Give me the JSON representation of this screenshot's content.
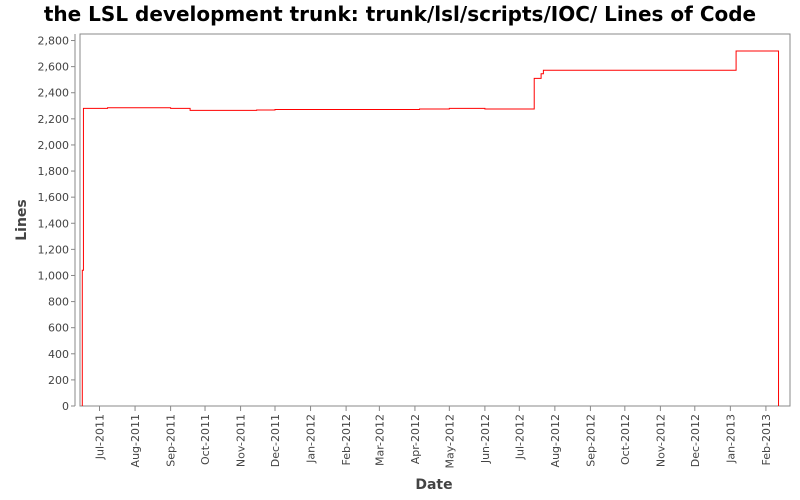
{
  "chart_data": {
    "type": "line",
    "title": "the LSL development trunk: trunk/lsl/scripts/IOC/ Lines of Code",
    "xlabel": "Date",
    "ylabel": "Lines",
    "ylim": [
      0,
      2850
    ],
    "xlim": [
      "2011-06-14",
      "2013-02-22"
    ],
    "yticks": [
      0,
      200,
      400,
      600,
      800,
      1000,
      1200,
      1400,
      1600,
      1800,
      2000,
      2200,
      2400,
      2600,
      2800
    ],
    "ytick_labels": [
      "0",
      "200",
      "400",
      "600",
      "800",
      "1,000",
      "1,200",
      "1,400",
      "1,600",
      "1,800",
      "2,000",
      "2,200",
      "2,400",
      "2,600",
      "2,800"
    ],
    "xticks": [
      "2011-07-01",
      "2011-08-01",
      "2011-09-01",
      "2011-10-01",
      "2011-11-01",
      "2011-12-01",
      "2012-01-01",
      "2012-02-01",
      "2012-03-01",
      "2012-04-01",
      "2012-05-01",
      "2012-06-01",
      "2012-07-01",
      "2012-08-01",
      "2012-09-01",
      "2012-10-01",
      "2012-11-01",
      "2012-12-01",
      "2013-01-01",
      "2013-02-01"
    ],
    "xtick_labels": [
      "Jul-2011",
      "Aug-2011",
      "Sep-2011",
      "Oct-2011",
      "Nov-2011",
      "Dec-2011",
      "Jan-2012",
      "Feb-2012",
      "Mar-2012",
      "Apr-2012",
      "May-2012",
      "Jun-2012",
      "Jul-2012",
      "Aug-2012",
      "Sep-2012",
      "Oct-2012",
      "Nov-2012",
      "Dec-2012",
      "Jan-2013",
      "Feb-2013"
    ],
    "grid": false,
    "series": [
      {
        "name": "",
        "color": "#ff0000",
        "step": true,
        "points": [
          [
            "2011-06-16",
            0
          ],
          [
            "2011-06-16",
            1040
          ],
          [
            "2011-06-17",
            2280
          ],
          [
            "2011-07-08",
            2285
          ],
          [
            "2011-09-01",
            2280
          ],
          [
            "2011-09-18",
            2265
          ],
          [
            "2011-11-15",
            2268
          ],
          [
            "2011-12-01",
            2272
          ],
          [
            "2012-04-05",
            2275
          ],
          [
            "2012-05-01",
            2280
          ],
          [
            "2012-06-01",
            2275
          ],
          [
            "2012-07-14",
            2510
          ],
          [
            "2012-07-20",
            2545
          ],
          [
            "2012-07-22",
            2572
          ],
          [
            "2013-01-06",
            2720
          ],
          [
            "2013-02-12",
            2720
          ],
          [
            "2013-02-12",
            0
          ]
        ]
      }
    ]
  }
}
